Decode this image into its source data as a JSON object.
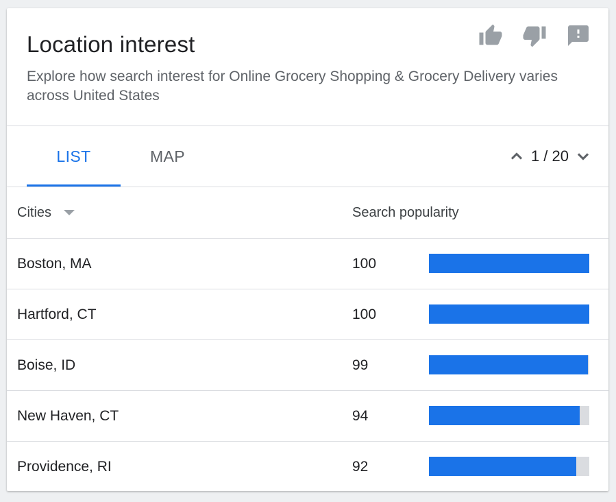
{
  "header": {
    "title": "Location interest",
    "subtitle": "Explore how search interest for Online Grocery Shopping & Grocery Delivery varies across United States",
    "actions": [
      "thumbs-up-icon",
      "thumbs-down-icon",
      "feedback-icon"
    ]
  },
  "tabs": [
    {
      "label": "LIST",
      "active": true
    },
    {
      "label": "MAP",
      "active": false
    }
  ],
  "pager": {
    "text": "1 / 20",
    "current": 1,
    "total": 20
  },
  "table": {
    "columns": {
      "cities": "Cities",
      "popularity": "Search popularity"
    },
    "rows": [
      {
        "city": "Boston, MA",
        "value": "100",
        "fraction": 1.0
      },
      {
        "city": "Hartford, CT",
        "value": "100",
        "fraction": 1.0
      },
      {
        "city": "Boise, ID",
        "value": "99",
        "fraction": 0.99
      },
      {
        "city": "New Haven, CT",
        "value": "94",
        "fraction": 0.94
      },
      {
        "city": "Providence, RI",
        "value": "92",
        "fraction": 0.92
      }
    ]
  },
  "colors": {
    "accent": "#1a73e8",
    "track": "#dadce0",
    "icon": "#9aa0a6"
  }
}
